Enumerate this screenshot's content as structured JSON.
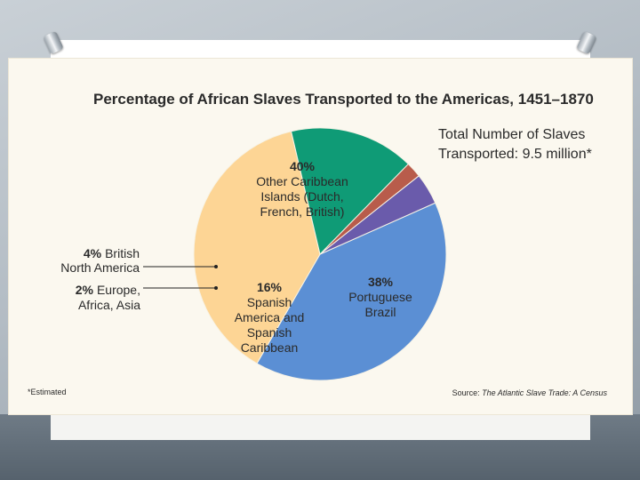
{
  "chart_data": {
    "type": "pie",
    "title": "Percentage of African Slaves Transported to the Americas, 1451–1870",
    "subtitle_lines": [
      "Total Number of Slaves",
      "Transported: 9.5 million*"
    ],
    "slices": [
      {
        "value": 40,
        "pct_label": "40%",
        "label_lines": [
          "Other Caribbean",
          "Islands (Dutch,",
          "French, British)"
        ],
        "color": "#5b8fd4"
      },
      {
        "value": 38,
        "pct_label": "38%",
        "label_lines": [
          "Portuguese",
          "Brazil"
        ],
        "color": "#fdd595"
      },
      {
        "value": 16,
        "pct_label": "16%",
        "label_lines": [
          "Spanish",
          "America and",
          "Spanish",
          "Caribbean"
        ],
        "color": "#0f9b76"
      },
      {
        "value": 2,
        "pct_label": "2%",
        "label_lines": [
          "Europe,",
          "Africa, Asia"
        ],
        "color": "#b85c4b"
      },
      {
        "value": 4,
        "pct_label": "4%",
        "label_lines": [
          "British",
          "North America"
        ],
        "color": "#6a5bab"
      }
    ],
    "footnote": "*Estimated",
    "source_prefix": "Source: ",
    "source_title": "The Atlantic Slave Trade: A Census"
  }
}
